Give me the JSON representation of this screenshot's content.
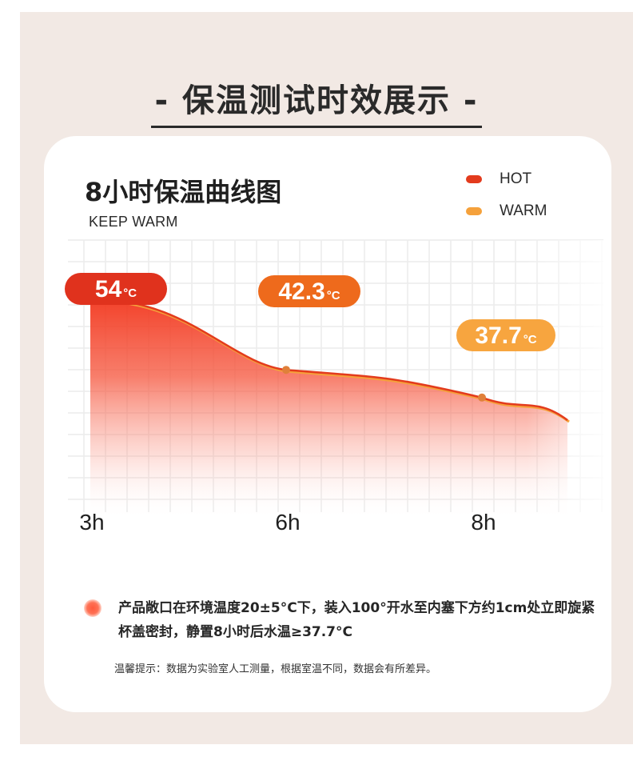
{
  "page": {
    "title": "- 保温测试时效展示 -"
  },
  "chart_data": {
    "type": "area",
    "title": "8小时保温曲线图",
    "subtitle": "KEEP WARM",
    "x": [
      "3h",
      "6h",
      "8h"
    ],
    "series": [
      {
        "name": "HOT",
        "color": "#e33b1d",
        "values": [
          54,
          42.3,
          37.7
        ]
      },
      {
        "name": "WARM",
        "color": "#f5a13b",
        "values": [
          54,
          42.3,
          37.7
        ]
      }
    ],
    "data_labels": [
      {
        "value": "54",
        "unit": "°C",
        "color": "#e0321d"
      },
      {
        "value": "42.3",
        "unit": "°C",
        "color": "#ee6a1c"
      },
      {
        "value": "37.7",
        "unit": "°C",
        "color": "#f7a53f"
      }
    ],
    "grid": true,
    "legend_position": "top-right"
  },
  "notes": {
    "description": "产品敞口在环境温度20±5°C下，装入100°开水至内塞下方约1cm处立即旋紧杯盖密封，静置8小时后水温≥37.7°C",
    "disclaimer": "温馨提示：数据为实验室人工测量，根据室温不同，数据会有所差异。"
  }
}
